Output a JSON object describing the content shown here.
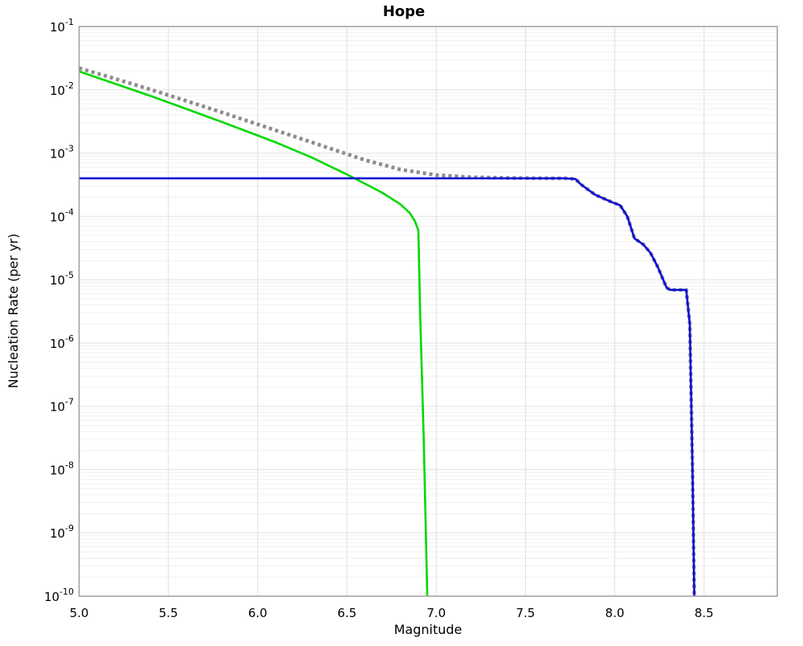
{
  "chart_data": {
    "type": "line",
    "title": "Hope",
    "xlabel": "Magnitude",
    "ylabel": "Nucleation Rate (per yr)",
    "xlim": [
      5.0,
      8.91
    ],
    "y_exponent_range": [
      -10,
      -1
    ],
    "grid": true,
    "legend": "none",
    "x_ticks": [
      5.0,
      5.5,
      6.0,
      6.5,
      7.0,
      7.5,
      8.0,
      8.5
    ],
    "x_tick_labels": [
      "5.0",
      "5.5",
      "6.0",
      "6.5",
      "7.0",
      "7.5",
      "8.0",
      "8.5"
    ],
    "y_tick_exponents": [
      -1,
      -2,
      -3,
      -4,
      -5,
      -6,
      -7,
      -8,
      -9,
      -10
    ],
    "y_tick_base": "10",
    "colors": {
      "green_curve": "#00d800",
      "gray_dotted_curve": "#8c8c8c",
      "blue_curve": "#0d0dd8",
      "grid_major": "#e0e0e0",
      "grid_minor": "#f0f0f0",
      "spine": "#9e9e9e"
    },
    "series": [
      {
        "name": "green_solid_curve",
        "style": "solid",
        "color": "#00d800",
        "points": [
          [
            5.0,
            0.0195
          ],
          [
            5.2,
            0.0125
          ],
          [
            5.4,
            0.008
          ],
          [
            5.6,
            0.005
          ],
          [
            5.8,
            0.0031
          ],
          [
            6.0,
            0.0019
          ],
          [
            6.1,
            0.00148
          ],
          [
            6.2,
            0.00113
          ],
          [
            6.3,
            0.00086
          ],
          [
            6.4,
            0.00063
          ],
          [
            6.5,
            0.00046
          ],
          [
            6.6,
            0.00033
          ],
          [
            6.7,
            0.000235
          ],
          [
            6.8,
            0.000155
          ],
          [
            6.85,
            0.000115
          ],
          [
            6.88,
            8.5e-05
          ],
          [
            6.9,
            6e-05
          ],
          [
            6.91,
            3e-06
          ],
          [
            6.93,
            3e-08
          ],
          [
            6.95,
            1e-10
          ]
        ]
      },
      {
        "name": "gray_dotted_curve",
        "style": "dotted",
        "color": "#8c8c8c",
        "points": [
          [
            5.0,
            0.022
          ],
          [
            5.2,
            0.015
          ],
          [
            5.4,
            0.0101
          ],
          [
            5.6,
            0.0067
          ],
          [
            5.8,
            0.0044
          ],
          [
            6.0,
            0.00285
          ],
          [
            6.2,
            0.00185
          ],
          [
            6.4,
            0.0012
          ],
          [
            6.6,
            0.00078
          ],
          [
            6.8,
            0.00055
          ],
          [
            7.0,
            0.00045
          ],
          [
            7.2,
            0.000415
          ],
          [
            7.4,
            0.000405
          ],
          [
            7.6,
            0.0004
          ],
          [
            7.72,
            0.0004
          ],
          [
            7.78,
            0.00039
          ],
          [
            7.81,
            0.00032
          ],
          [
            7.89,
            0.00022
          ],
          [
            7.99,
            0.000165
          ],
          [
            8.03,
            0.00015
          ],
          [
            8.07,
            0.0001
          ],
          [
            8.11,
            4.5e-05
          ],
          [
            8.16,
            3.6e-05
          ],
          [
            8.2,
            2.65e-05
          ],
          [
            8.24,
            1.6e-05
          ],
          [
            8.29,
            7.5e-06
          ],
          [
            8.31,
            6.9e-06
          ],
          [
            8.4,
            6.9e-06
          ],
          [
            8.42,
            2e-06
          ],
          [
            8.435,
            1e-08
          ],
          [
            8.445,
            1e-10
          ]
        ]
      },
      {
        "name": "blue_solid_curve",
        "style": "solid",
        "color": "#0d0dd8",
        "points": [
          [
            5.0,
            0.0004
          ],
          [
            7.72,
            0.0004
          ],
          [
            7.78,
            0.00039
          ],
          [
            7.81,
            0.00032
          ],
          [
            7.89,
            0.00022
          ],
          [
            7.99,
            0.000165
          ],
          [
            8.03,
            0.00015
          ],
          [
            8.07,
            0.0001
          ],
          [
            8.11,
            4.5e-05
          ],
          [
            8.16,
            3.6e-05
          ],
          [
            8.2,
            2.65e-05
          ],
          [
            8.24,
            1.6e-05
          ],
          [
            8.29,
            7.5e-06
          ],
          [
            8.31,
            6.9e-06
          ],
          [
            8.4,
            6.9e-06
          ],
          [
            8.42,
            2e-06
          ],
          [
            8.435,
            1e-08
          ],
          [
            8.445,
            1e-10
          ]
        ]
      }
    ]
  }
}
